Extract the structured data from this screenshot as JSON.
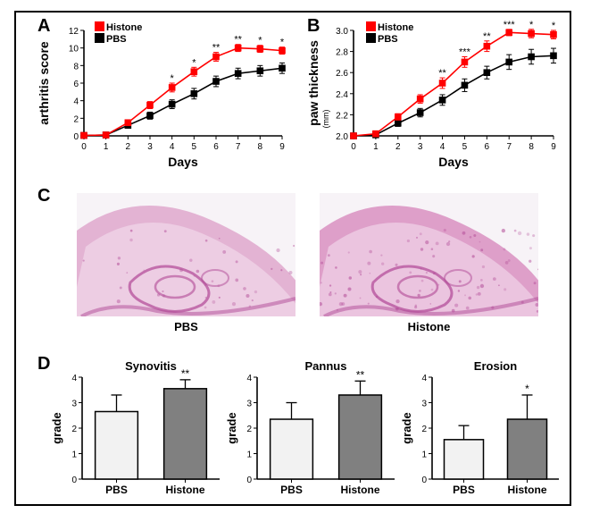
{
  "figure": {
    "panels": {
      "A": {
        "type": "line",
        "title_letter": "A",
        "ylabel": "arthritis score",
        "xlabel": "Days",
        "xlim": [
          0,
          9
        ],
        "xtick_step": 1,
        "ylim": [
          0,
          12
        ],
        "ytick_step": 2,
        "legend": [
          {
            "label": "Histone",
            "color": "#ff0000"
          },
          {
            "label": "PBS",
            "color": "#000000"
          }
        ],
        "series": {
          "histone": {
            "color": "#ff0000",
            "x": [
              0,
              1,
              2,
              3,
              4,
              5,
              6,
              7,
              8,
              9
            ],
            "y": [
              0.05,
              0.1,
              1.5,
              3.5,
              5.5,
              7.3,
              9.0,
              10.0,
              9.9,
              9.7
            ],
            "err": [
              0,
              0,
              0.3,
              0.4,
              0.5,
              0.5,
              0.5,
              0.4,
              0.4,
              0.4
            ],
            "sig": [
              "",
              "",
              "",
              "",
              "*",
              "*",
              "**",
              "**",
              "*",
              "*"
            ]
          },
          "pbs": {
            "color": "#000000",
            "x": [
              0,
              1,
              2,
              3,
              4,
              5,
              6,
              7,
              8,
              9
            ],
            "y": [
              0.05,
              0.1,
              1.2,
              2.3,
              3.6,
              4.8,
              6.2,
              7.1,
              7.4,
              7.7
            ],
            "err": [
              0,
              0,
              0.3,
              0.4,
              0.5,
              0.6,
              0.6,
              0.6,
              0.6,
              0.6
            ]
          }
        },
        "marker_size": 3.8,
        "line_width": 1.6,
        "tick_fontsize": 10,
        "label_fontsize": 14
      },
      "B": {
        "type": "line",
        "title_letter": "B",
        "ylabel": "paw thickness",
        "ylabel_unit": "(mm)",
        "xlabel": "Days",
        "xlim": [
          0,
          9
        ],
        "xtick_step": 1,
        "ylim": [
          2.0,
          3.0
        ],
        "ytick_step": 0.2,
        "legend": [
          {
            "label": "Histone",
            "color": "#ff0000"
          },
          {
            "label": "PBS",
            "color": "#000000"
          }
        ],
        "series": {
          "histone": {
            "color": "#ff0000",
            "x": [
              0,
              1,
              2,
              3,
              4,
              5,
              6,
              7,
              8,
              9
            ],
            "y": [
              2.0,
              2.02,
              2.18,
              2.35,
              2.5,
              2.7,
              2.85,
              2.98,
              2.97,
              2.96
            ],
            "err": [
              0,
              0,
              0.03,
              0.04,
              0.05,
              0.05,
              0.05,
              0.03,
              0.04,
              0.04
            ],
            "sig": [
              "",
              "",
              "",
              "",
              "**",
              "***",
              "**",
              "***",
              "*",
              "*"
            ]
          },
          "pbs": {
            "color": "#000000",
            "x": [
              0,
              1,
              2,
              3,
              4,
              5,
              6,
              7,
              8,
              9
            ],
            "y": [
              2.0,
              2.01,
              2.12,
              2.22,
              2.34,
              2.48,
              2.6,
              2.7,
              2.75,
              2.76
            ],
            "err": [
              0,
              0,
              0.03,
              0.04,
              0.05,
              0.06,
              0.06,
              0.07,
              0.07,
              0.07
            ]
          }
        },
        "marker_size": 3.8,
        "line_width": 1.6,
        "tick_fontsize": 10,
        "label_fontsize": 14
      },
      "C": {
        "type": "histology",
        "title_letter": "C",
        "images": [
          {
            "label": "PBS"
          },
          {
            "label": "Histone"
          }
        ],
        "tissue_color": "#d47eb7",
        "tissue_dark": "#b04795",
        "tissue_light": "#f3ddef",
        "bg_color": "#f7f3f7"
      },
      "D": {
        "type": "bar_row",
        "title_letter": "D",
        "ylabel": "grade",
        "ylim": [
          0,
          4
        ],
        "ytick_step": 1,
        "bar_colors": {
          "PBS": "#f2f2f2",
          "Histone": "#808080"
        },
        "bar_border": "#000000",
        "bar_width": 0.62,
        "charts": [
          {
            "title": "Synovitis",
            "bars": [
              {
                "label": "PBS",
                "value": 2.65,
                "err": 0.65
              },
              {
                "label": "Histone",
                "value": 3.55,
                "err": 0.35,
                "sig": "**"
              }
            ]
          },
          {
            "title": "Pannus",
            "bars": [
              {
                "label": "PBS",
                "value": 2.35,
                "err": 0.65
              },
              {
                "label": "Histone",
                "value": 3.3,
                "err": 0.55,
                "sig": "**"
              }
            ]
          },
          {
            "title": "Erosion",
            "bars": [
              {
                "label": "PBS",
                "value": 1.55,
                "err": 0.55
              },
              {
                "label": "Histone",
                "value": 2.35,
                "err": 0.95,
                "sig": "*"
              }
            ]
          }
        ],
        "title_fontsize": 12
      }
    },
    "background_color": "#ffffff",
    "border_color": "#000000"
  }
}
